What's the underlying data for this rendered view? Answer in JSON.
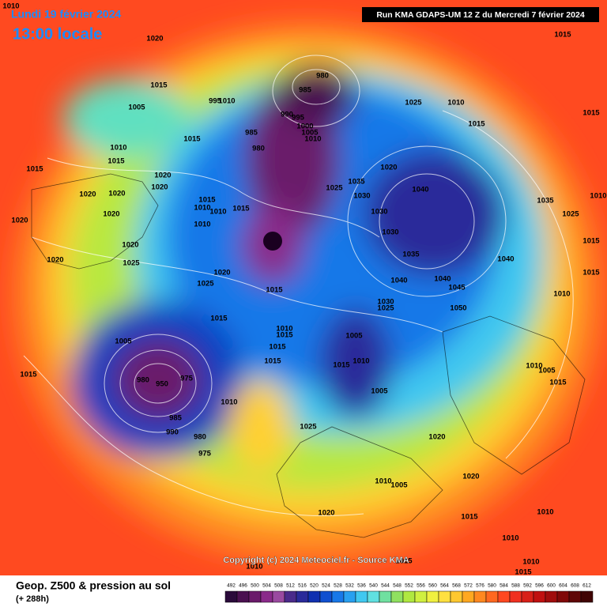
{
  "header": {
    "date": "Lundi 19 février 2024",
    "time": "13:00 locale",
    "run": "Run KMA GDAPS-UM 12 Z du Mercredi 7 février 2024"
  },
  "copyright": "Copyright (c) 2024 Meteociel.fr - Source KMA",
  "footer": {
    "title": "Geop. Z500 & pression au sol",
    "lead": "(+ 288h)"
  },
  "scale": {
    "ticks": [
      492,
      496,
      500,
      504,
      508,
      512,
      516,
      520,
      524,
      528,
      532,
      536,
      540,
      544,
      548,
      552,
      556,
      560,
      564,
      568,
      572,
      576,
      580,
      584,
      588,
      592,
      596,
      600,
      604,
      608,
      612
    ],
    "colors": [
      "#2a0a3a",
      "#4a1050",
      "#6a1a6a",
      "#8a2a8a",
      "#9a4aa0",
      "#4a2a8a",
      "#2a2a9a",
      "#1030b0",
      "#1050d0",
      "#1878e8",
      "#28a0f0",
      "#40c8f0",
      "#60e0e0",
      "#70e0a0",
      "#90e060",
      "#b0e840",
      "#d0f040",
      "#f0f040",
      "#ffe040",
      "#ffc830",
      "#ffa820",
      "#ff8820",
      "#ff6820",
      "#ff4820",
      "#f03020",
      "#d82018",
      "#c01010",
      "#a00c0c",
      "#800808",
      "#600606",
      "#400404"
    ]
  },
  "isobar_labels": [
    1010,
    1020,
    1015,
    1015,
    1005,
    995,
    1010,
    980,
    985,
    990,
    995,
    1000,
    1005,
    1010,
    985,
    980,
    1025,
    1010,
    1015,
    1015,
    1010,
    1015,
    1015,
    1015,
    1020,
    1020,
    1020,
    1020,
    1020,
    1020,
    1025,
    1035,
    1030,
    1030,
    1020,
    1040,
    1035,
    1025,
    1030,
    1035,
    1015,
    1010,
    1010,
    1010,
    1015,
    1020,
    1025,
    1020,
    1020,
    1025,
    1015,
    1040,
    1040,
    1045,
    1040,
    1015,
    1015,
    1010,
    1050,
    1030,
    1025,
    1015,
    1010,
    1015,
    1015,
    1015,
    1005,
    1010,
    1015,
    1005,
    1005,
    980,
    950,
    975,
    985,
    990,
    980,
    975,
    1010,
    1015,
    1025,
    1010,
    1005,
    1015,
    1020,
    1020,
    1010,
    1005,
    1020,
    1015,
    1010,
    1010,
    1010,
    1015,
    1015,
    1010,
    1010
  ]
}
